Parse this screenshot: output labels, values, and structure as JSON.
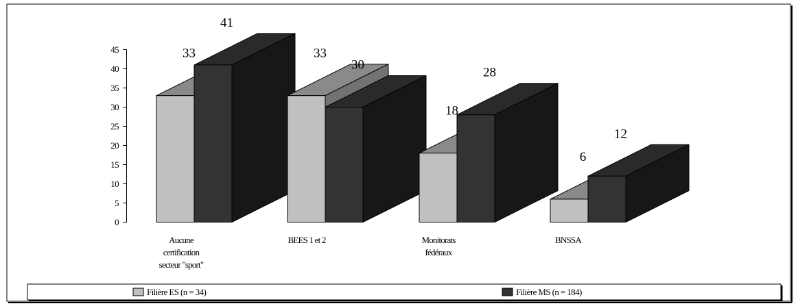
{
  "chart_data": {
    "type": "bar",
    "categories": [
      [
        "Aucune",
        "certification",
        "secteur \"sport\""
      ],
      [
        "BEES 1 et 2"
      ],
      [
        "Monitorats",
        "fédéraux"
      ],
      [
        "BNSSA"
      ]
    ],
    "series": [
      {
        "name": "Filière ES (n = 34)",
        "values": [
          33,
          33,
          18,
          6
        ],
        "color": "#c0c0c0"
      },
      {
        "name": "Filière MS (n = 184)",
        "values": [
          41,
          30,
          28,
          12
        ],
        "color": "#333333"
      }
    ],
    "y_ticks": [
      "0",
      "5",
      "10",
      "15",
      "20",
      "25",
      "30",
      "35",
      "40",
      "45"
    ],
    "ylim": [
      0,
      45
    ],
    "title": "",
    "xlabel": "",
    "ylabel": "",
    "grid": false,
    "legend_position": "bottom",
    "three_d": true
  }
}
